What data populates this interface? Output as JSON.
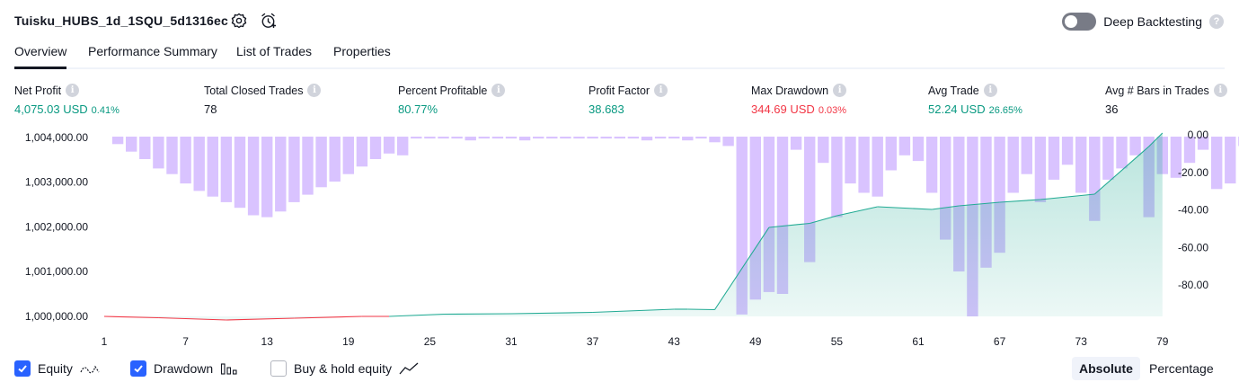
{
  "header": {
    "title": "Tuisku_HUBS_1d_1SQU_5d1316ec",
    "deep_backtesting_label": "Deep Backtesting",
    "help_glyph": "?"
  },
  "tabs": [
    {
      "label": "Overview",
      "active": true
    },
    {
      "label": "Performance Summary",
      "active": false
    },
    {
      "label": "List of Trades",
      "active": false
    },
    {
      "label": "Properties",
      "active": false
    }
  ],
  "stats": {
    "info_glyph": "i",
    "net_profit": {
      "label": "Net Profit",
      "value": "4,075.03 USD",
      "sub": "0.41%"
    },
    "total_closed_trades": {
      "label": "Total Closed Trades",
      "value": "78"
    },
    "percent_profitable": {
      "label": "Percent Profitable",
      "value": "80.77%"
    },
    "profit_factor": {
      "label": "Profit Factor",
      "value": "38.683"
    },
    "max_drawdown": {
      "label": "Max Drawdown",
      "value": "344.69 USD",
      "sub": "0.03%"
    },
    "avg_trade": {
      "label": "Avg Trade",
      "value": "52.24 USD",
      "sub": "26.65%"
    },
    "avg_bars": {
      "label": "Avg # Bars in Trades",
      "value": "36"
    }
  },
  "colors": {
    "positive": "#089981",
    "negative": "#f23645",
    "equity_line_pos": "#22ab94",
    "equity_line_neg": "#f23645",
    "equity_fill": "#22ab94",
    "drawdown_bar": "#b388ff",
    "accent": "#2962ff"
  },
  "chart_data": {
    "type": "bar+area",
    "x_ticks": [
      "1",
      "7",
      "13",
      "19",
      "25",
      "31",
      "37",
      "43",
      "49",
      "55",
      "61",
      "67",
      "73",
      "79"
    ],
    "left_axis": {
      "ticks": [
        "1,004,000.00",
        "1,003,000.00",
        "1,002,000.00",
        "1,001,000.00",
        "1,000,000.00"
      ],
      "range": [
        1000000,
        1004000
      ]
    },
    "right_axis": {
      "ticks": [
        "0.00",
        "-20.00",
        "-40.00",
        "-60.00",
        "-80.00"
      ],
      "range": [
        -96,
        0
      ]
    },
    "series": [
      {
        "name": "Equity",
        "type": "area",
        "x": [
          1,
          5,
          10,
          15,
          20,
          22,
          26,
          31,
          37,
          43,
          44,
          46,
          50,
          53,
          55,
          58,
          62,
          64,
          67,
          70,
          72,
          74,
          78,
          79
        ],
        "values": [
          1000000,
          999970,
          999920,
          999960,
          1000000,
          1000000,
          1000050,
          1000060,
          1000090,
          1000160,
          1000160,
          1000150,
          1001980,
          1002070,
          1002240,
          1002440,
          1002380,
          1002460,
          1002540,
          1002600,
          1002660,
          1002720,
          1003780,
          1004080
        ]
      },
      {
        "name": "Drawdown",
        "type": "bar",
        "values": [
          0,
          -4,
          -8,
          -12,
          -17,
          -20,
          -25,
          -29,
          -32,
          -35,
          -38,
          -42,
          -43,
          -40,
          -35,
          -31,
          -27,
          -24,
          -20,
          -16,
          -12,
          -9,
          -10,
          -1,
          -1,
          -1,
          -1,
          -2,
          -1,
          -1,
          -1,
          -2,
          -1,
          -1,
          -1,
          -1,
          -1,
          -1,
          -1,
          -1,
          -2,
          -1,
          -1,
          -2,
          -1,
          -3,
          -5,
          -95,
          -87,
          -83,
          -84,
          -7,
          -67,
          -14,
          -43,
          -25,
          -30,
          -32,
          -18,
          -10,
          -13,
          -30,
          -55,
          -72,
          -96,
          -70,
          -62,
          -30,
          -20,
          -35,
          -23,
          -15,
          -30,
          -45,
          -23,
          -17,
          -10,
          -43,
          -20,
          -22,
          -14,
          -7,
          -28,
          -25,
          -5
        ]
      }
    ]
  },
  "legend": [
    {
      "label": "Equity",
      "checked": true,
      "icon": "equity-wave-icon"
    },
    {
      "label": "Drawdown",
      "checked": true,
      "icon": "drawdown-bars-icon"
    },
    {
      "label": "Buy & hold equity",
      "checked": false,
      "icon": "buyhold-line-icon"
    }
  ],
  "mode": {
    "absolute_label": "Absolute",
    "percentage_label": "Percentage",
    "selected": "Absolute"
  }
}
